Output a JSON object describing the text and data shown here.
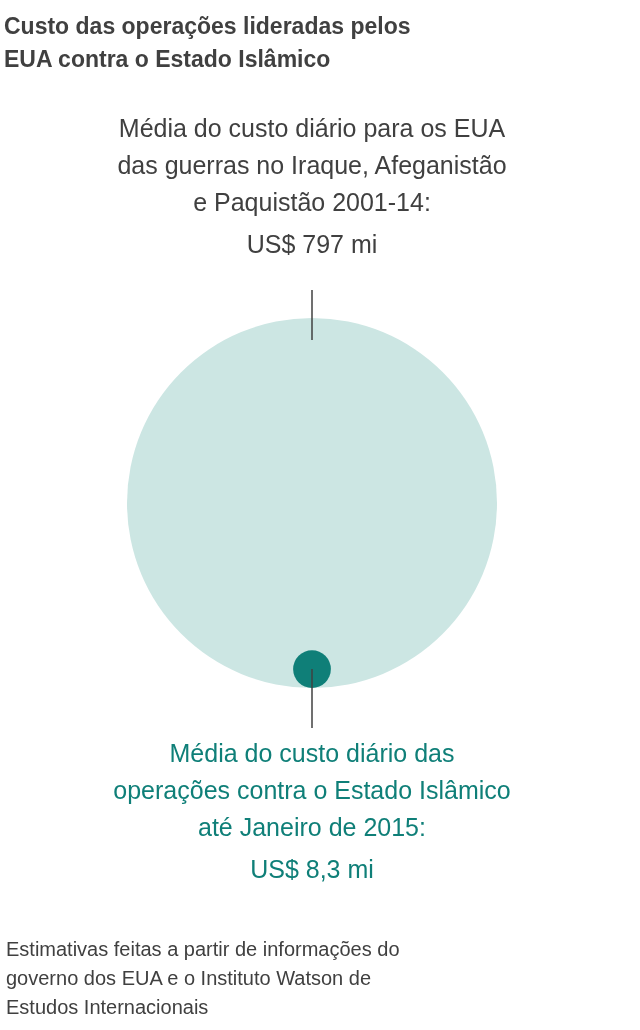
{
  "chart_data": {
    "type": "other",
    "title": "Custo das operações lideradas pelos EUA contra o Estado Islâmico",
    "categories": [
      null,
      null
    ],
    "values": [
      797,
      8.3
    ],
    "value_labels": [
      "US$ 797 mi",
      "US$ 8,3 mi"
    ],
    "colors": [
      "#cce6e3",
      "#0f7f78"
    ],
    "annotations": [
      "Média do custo diário para os EUA das guerras no Iraque, Afeganistão e Paquistão 2001-14:",
      "Média do custo diário das operações contra o Estado Islâmico até Janeiro de 2015:",
      "Estimativas feitas a partir de informações do governo dos EUA e o Instituto Watson de Estudos Internacionais"
    ]
  }
}
